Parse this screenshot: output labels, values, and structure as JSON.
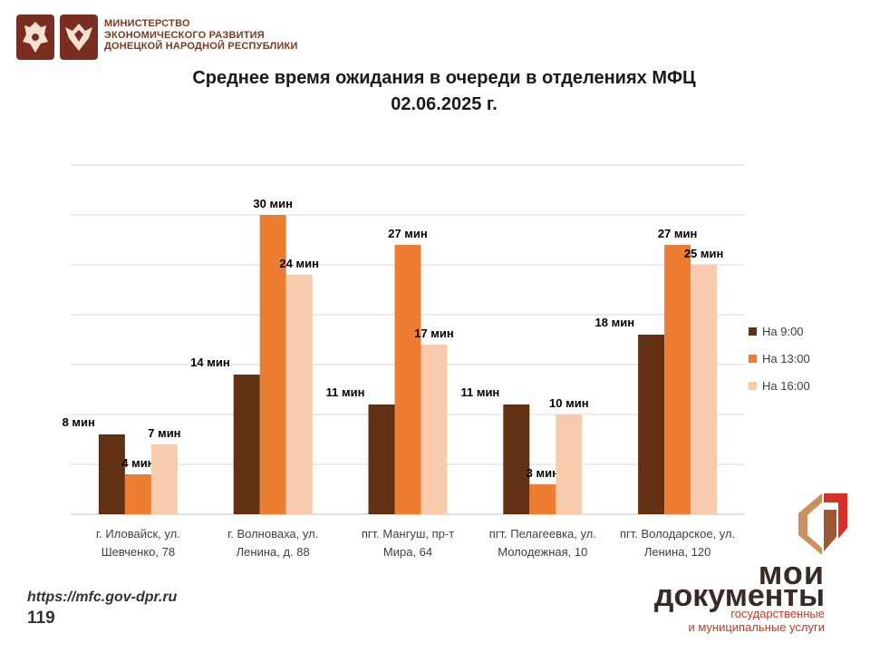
{
  "header": {
    "ministry_lines": [
      "МИНИСТЕРСТВО",
      "ЭКОНОМИЧЕСКОГО РАЗВИТИЯ",
      "ДОНЕЦКОЙ НАРОДНОЙ РЕСПУБЛИКИ"
    ],
    "emblems": [
      "coat-of-arms-icon",
      "coat-of-arms-icon"
    ]
  },
  "chart_data": {
    "type": "bar",
    "title": [
      "Среднее время ожидания в очереди в отделениях МФЦ",
      "02.06.2025 г."
    ],
    "xlabel": "",
    "ylabel": "",
    "ylim": [
      0,
      35
    ],
    "grid": true,
    "legend_position": "right",
    "categories": [
      [
        "г. Иловайск, ул.",
        "Шевченко, 78"
      ],
      [
        "г. Волноваха, ул.",
        "Ленина, д. 88"
      ],
      [
        "пгт. Мангуш, пр-т",
        "Мира, 64"
      ],
      [
        "пгт. Пелагеевка, ул.",
        "Молодежная, 10"
      ],
      [
        "пгт. Володарское, ул.",
        "Ленина, 120"
      ]
    ],
    "series": [
      {
        "name": "На 9:00",
        "color": "#623113",
        "values": [
          8,
          14,
          11,
          11,
          18
        ],
        "labels": [
          "8 мин",
          "14 мин",
          "11 мин",
          "11 мин",
          "18 мин"
        ]
      },
      {
        "name": "На 13:00",
        "color": "#ed7d31",
        "values": [
          4,
          30,
          27,
          3,
          27
        ],
        "labels": [
          "4  мин",
          "30 мин",
          "27 мин",
          "3 мин",
          "27 мин"
        ]
      },
      {
        "name": "На 16:00",
        "color": "#f8cbad",
        "values": [
          7,
          24,
          17,
          10,
          25
        ],
        "labels": [
          "7 мин",
          "24 мин",
          "17 мин",
          "10 мин",
          "25 мин"
        ]
      }
    ]
  },
  "footer": {
    "url": "https://mfc.gov-dpr.ru",
    "page_number": "119"
  },
  "brand": {
    "name_lines": [
      "мои",
      "документы"
    ],
    "subtitle_lines": [
      "государственные",
      "и муниципальные услуги"
    ],
    "logo_icon": "moi-dokumenty-logo-icon"
  }
}
